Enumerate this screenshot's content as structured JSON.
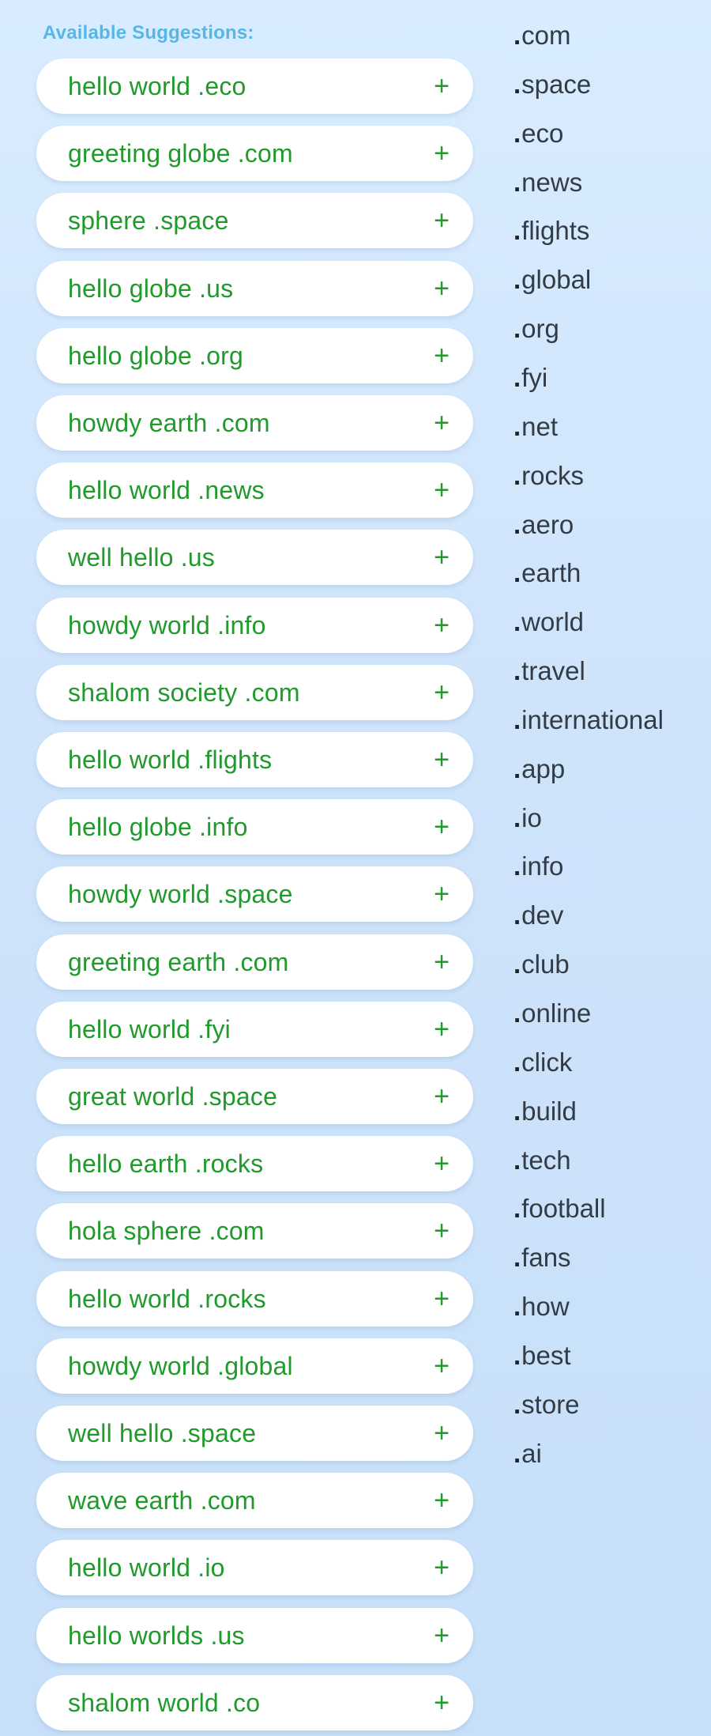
{
  "suggestions": {
    "title": "Available Suggestions:",
    "add_symbol": "+",
    "items": [
      {
        "name": "hello world .eco"
      },
      {
        "name": "greeting globe .com"
      },
      {
        "name": "sphere .space"
      },
      {
        "name": "hello globe .us"
      },
      {
        "name": "hello globe .org"
      },
      {
        "name": "howdy earth .com"
      },
      {
        "name": "hello world .news"
      },
      {
        "name": "well hello .us"
      },
      {
        "name": "howdy world .info"
      },
      {
        "name": "shalom society .com"
      },
      {
        "name": "hello world .flights"
      },
      {
        "name": "hello globe .info"
      },
      {
        "name": "howdy world .space"
      },
      {
        "name": "greeting earth .com"
      },
      {
        "name": "hello world .fyi"
      },
      {
        "name": "great world .space"
      },
      {
        "name": "hello earth .rocks"
      },
      {
        "name": "hola sphere .com"
      },
      {
        "name": "hello world .rocks"
      },
      {
        "name": "howdy world .global"
      },
      {
        "name": "well hello .space"
      },
      {
        "name": "wave earth .com"
      },
      {
        "name": "hello world .io"
      },
      {
        "name": "hello worlds .us"
      },
      {
        "name": "shalom world .co"
      }
    ]
  },
  "tlds": {
    "dot": ".",
    "items": [
      "com",
      "space",
      "eco",
      "news",
      "flights",
      "global",
      "org",
      "fyi",
      "net",
      "rocks",
      "aero",
      "earth",
      "world",
      "travel",
      "international",
      "app",
      "io",
      "info",
      "dev",
      "club",
      "online",
      "click",
      "build",
      "tech",
      "football",
      "fans",
      "how",
      "best",
      "store",
      "ai"
    ]
  },
  "colors": {
    "title": "#58b6e6",
    "suggestion_text": "#1f9a2b",
    "tld_text": "#333c44",
    "card_background": "#ffffff"
  }
}
